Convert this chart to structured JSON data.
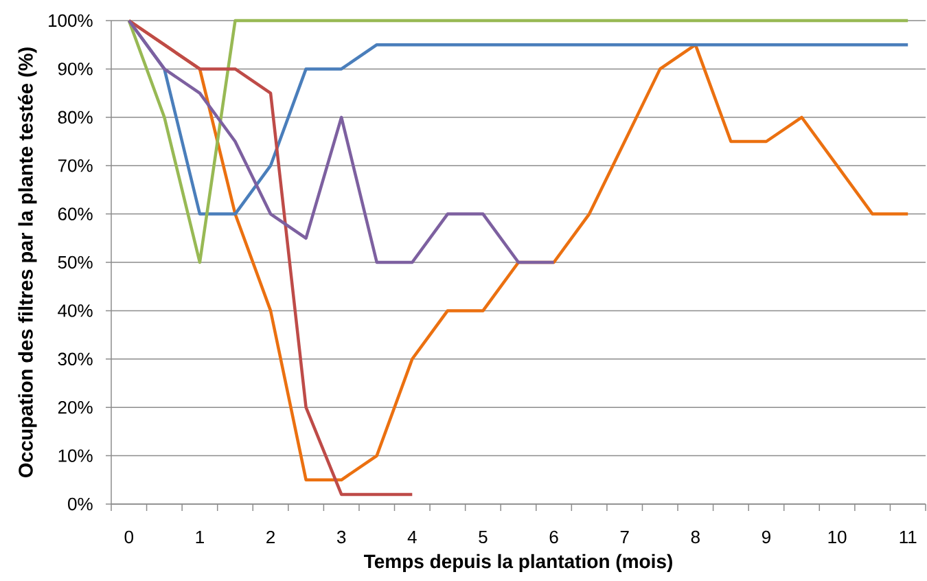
{
  "chart_data": {
    "type": "line",
    "xlabel": "Temps depuis la plantation (mois)",
    "ylabel": "Occupation des filtres par la plante testée (%)",
    "categories": [
      "0",
      null,
      "1",
      null,
      "2",
      null,
      "3",
      null,
      "4",
      null,
      "5",
      null,
      "6",
      null,
      "7",
      null,
      "8",
      null,
      "9",
      null,
      "10",
      null,
      "11"
    ],
    "series": [
      {
        "color": "#eb7010",
        "values": [
          100,
          95,
          90,
          60,
          40,
          5,
          5,
          10,
          30,
          40,
          40,
          50,
          50,
          60,
          75,
          90,
          95,
          75,
          75,
          80,
          70,
          60,
          60
        ]
      },
      {
        "color": "#4a7ebb",
        "values": [
          100,
          90,
          60,
          60,
          70,
          90,
          90,
          95,
          95,
          95,
          95,
          95,
          95,
          95,
          95,
          95,
          95,
          95,
          95,
          95,
          95,
          95,
          95
        ]
      },
      {
        "color": "#98b954",
        "values": [
          100,
          80,
          50,
          100,
          100,
          100,
          100,
          100,
          100,
          100,
          100,
          100,
          100,
          100,
          100,
          100,
          100,
          100,
          100,
          100,
          100,
          100,
          100
        ]
      },
      {
        "color": "#be4b48",
        "values": [
          100,
          95,
          90,
          90,
          85,
          20,
          2,
          2,
          2,
          null,
          null,
          null,
          null,
          null,
          null,
          null,
          null,
          null,
          null,
          null,
          null,
          null,
          null
        ]
      },
      {
        "color": "#7d60a0",
        "values": [
          100,
          90,
          85,
          75,
          60,
          55,
          80,
          50,
          50,
          60,
          60,
          50,
          50,
          null,
          null,
          null,
          null,
          null,
          null,
          null,
          null,
          null,
          null
        ]
      }
    ],
    "ylim": [
      0,
      100
    ],
    "yticks": [
      {
        "value": 0,
        "label": "0%"
      },
      {
        "value": 10,
        "label": "10%"
      },
      {
        "value": 20,
        "label": "20%"
      },
      {
        "value": 30,
        "label": "30%"
      },
      {
        "value": 40,
        "label": "40%"
      },
      {
        "value": 50,
        "label": "50%"
      },
      {
        "value": 60,
        "label": "60%"
      },
      {
        "value": 70,
        "label": "70%"
      },
      {
        "value": 80,
        "label": "80%"
      },
      {
        "value": 90,
        "label": "90%"
      },
      {
        "value": 100,
        "label": "100%"
      }
    ],
    "grid": "y",
    "marker": "none",
    "line_style": "solid"
  }
}
